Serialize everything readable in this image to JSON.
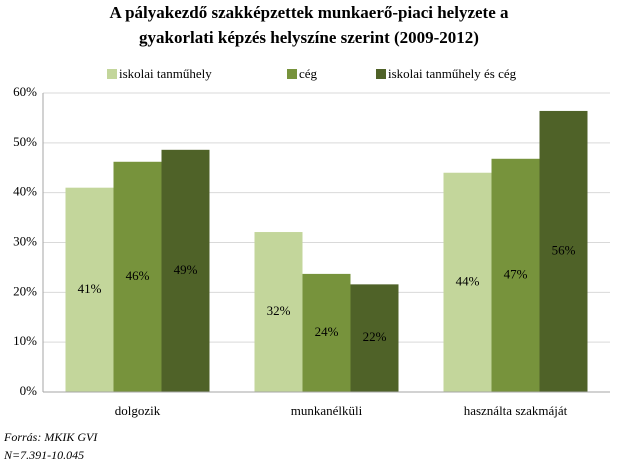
{
  "chart_data": {
    "type": "bar",
    "title": [
      "A pályakezdő szakképzettek munkaerő-piaci helyzete a",
      "gyakorlati képzés helyszíne szerint (2009-2012)"
    ],
    "categories": [
      "dolgozik",
      "munkanélküli",
      "használta szakmáját"
    ],
    "series": [
      {
        "name": "iskolai tanműhely",
        "color": "#c3d69b",
        "values": [
          41.0,
          32.1,
          44.0
        ],
        "value_labels": [
          "41%",
          "32%",
          "44%"
        ]
      },
      {
        "name": "cég",
        "color": "#77933c",
        "values": [
          46.2,
          23.7,
          46.8
        ],
        "value_labels": [
          "46%",
          "24%",
          "47%"
        ]
      },
      {
        "name": "iskolai tanműhely és cég",
        "color": "#4f6228",
        "values": [
          48.6,
          21.6,
          56.4
        ],
        "value_labels": [
          "49%",
          "22%",
          "56%"
        ]
      }
    ],
    "ylim": [
      0,
      60
    ],
    "yticks": [
      {
        "value": 0,
        "label": "0%"
      },
      {
        "value": 10,
        "label": "10%"
      },
      {
        "value": 20,
        "label": "20%"
      },
      {
        "value": 30,
        "label": "30%"
      },
      {
        "value": 40,
        "label": "40%"
      },
      {
        "value": 50,
        "label": "50%"
      },
      {
        "value": 60,
        "label": "60%"
      }
    ],
    "grid": true,
    "legend": "top",
    "notes": [
      "Forrás: MKIK GVI",
      "N=7.391-10.045"
    ]
  }
}
